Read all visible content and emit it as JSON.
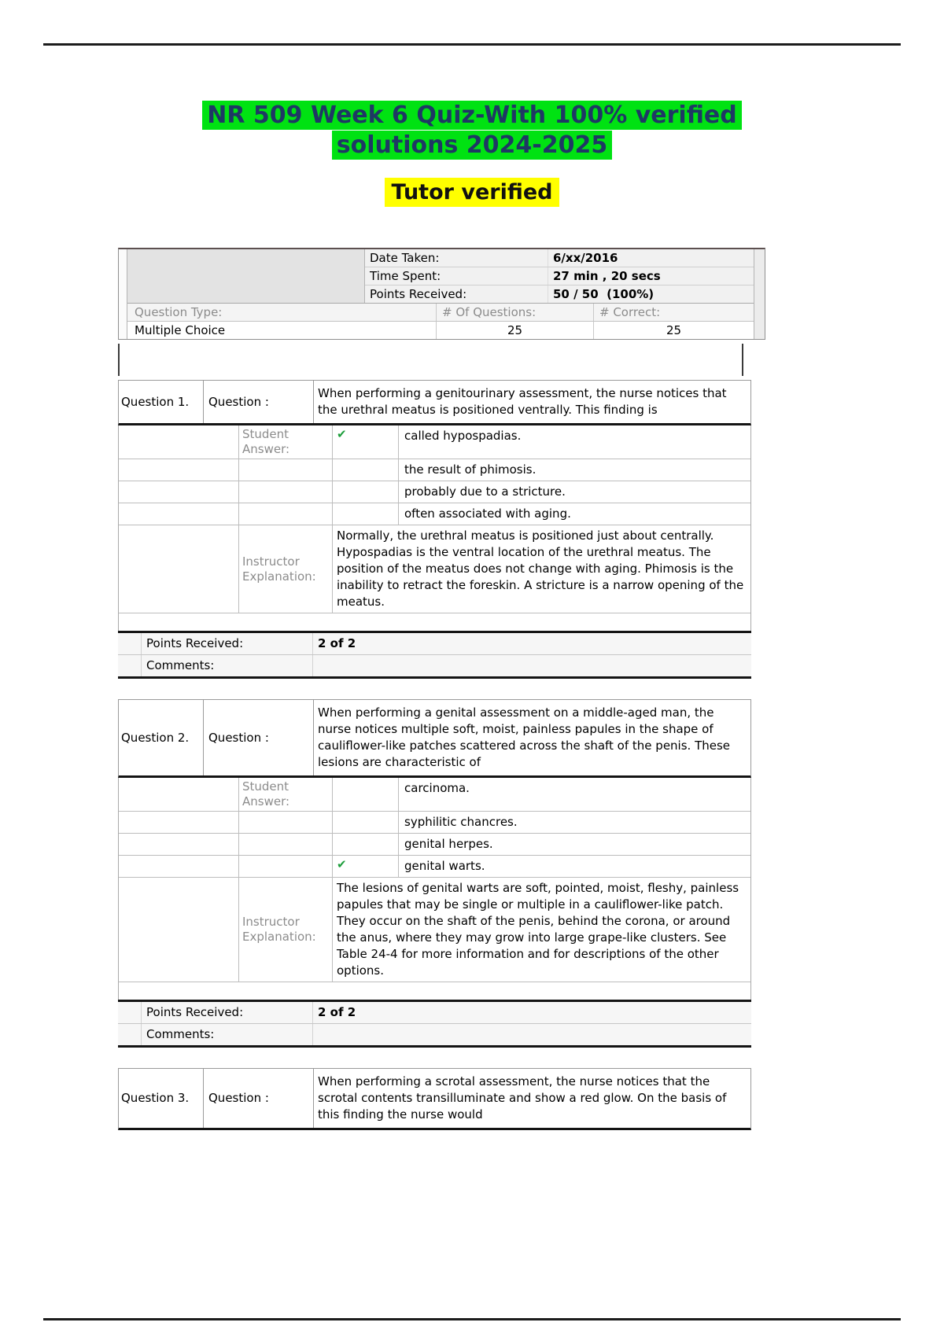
{
  "page": {
    "title": "NR 509 Week 6 Quiz-With 100% verified solutions 2024-2025",
    "subtitle": "Tutor verified"
  },
  "colors": {
    "title_highlight": "#00e212",
    "subtitle_highlight": "#ffff00",
    "title_text": "#1f3864",
    "checkmark_green": "#1e9e3c"
  },
  "summary": {
    "date_taken_label": "Date Taken:",
    "date_taken": "6/xx/2016",
    "time_spent_label": "Time Spent:",
    "time_spent": "27 min , 20 secs",
    "points_received_label": "Points Received:",
    "points_received": "50 / 50  (100%)",
    "question_type_label": "Question Type:",
    "num_questions_label": "# Of Questions:",
    "num_correct_label": "# Correct:",
    "question_type": "Multiple Choice",
    "num_questions": "25",
    "num_correct": "25"
  },
  "labels": {
    "question_col": "Question :",
    "student_answer": "Student Answer:",
    "instructor_explanation": "Instructor Explanation:",
    "points_received": "Points Received:",
    "comments": "Comments:"
  },
  "questions": [
    {
      "number": "Question 1.",
      "text": "When performing a genitourinary assessment, the nurse notices that the urethral meatus is positioned ventrally. This finding is",
      "options": [
        {
          "text": "called hypospadias.",
          "mark": "✔"
        },
        {
          "text": "the result of phimosis.",
          "mark": ""
        },
        {
          "text": "probably due to a stricture.",
          "mark": ""
        },
        {
          "text": "often associated with aging.",
          "mark": ""
        }
      ],
      "explanation": "Normally, the urethral meatus is positioned just about centrally. Hypospadias is the ventral location of the urethral meatus. The position of the meatus does not change with aging. Phimosis is the inability to retract the foreskin. A stricture is a narrow opening of the meatus.",
      "points": "2 of 2",
      "comments": ""
    },
    {
      "number": "Question 2.",
      "text": "When performing a genital assessment on a middle-aged man, the nurse notices multiple soft, moist, painless papules in the shape of cauliflower-like patches scattered across the shaft of the penis. These lesions are characteristic of",
      "options": [
        {
          "text": "carcinoma.",
          "mark": ""
        },
        {
          "text": "syphilitic chancres.",
          "mark": ""
        },
        {
          "text": "genital herpes.",
          "mark": ""
        },
        {
          "text": "genital warts.",
          "mark": "✔"
        }
      ],
      "explanation": "The lesions of genital warts are soft, pointed, moist, fleshy, painless papules that may be single or multiple in a cauliflower-like patch. They occur on the shaft of the penis, behind the corona, or around the anus, where they may grow into large grape-like clusters. See Table 24-4 for more information and for descriptions of the other options.",
      "points": "2 of 2",
      "comments": ""
    },
    {
      "number": "Question 3.",
      "text": "When performing a scrotal assessment, the nurse notices that the scrotal contents transilluminate and show a red glow. On the basis of this finding the nurse would"
    }
  ]
}
